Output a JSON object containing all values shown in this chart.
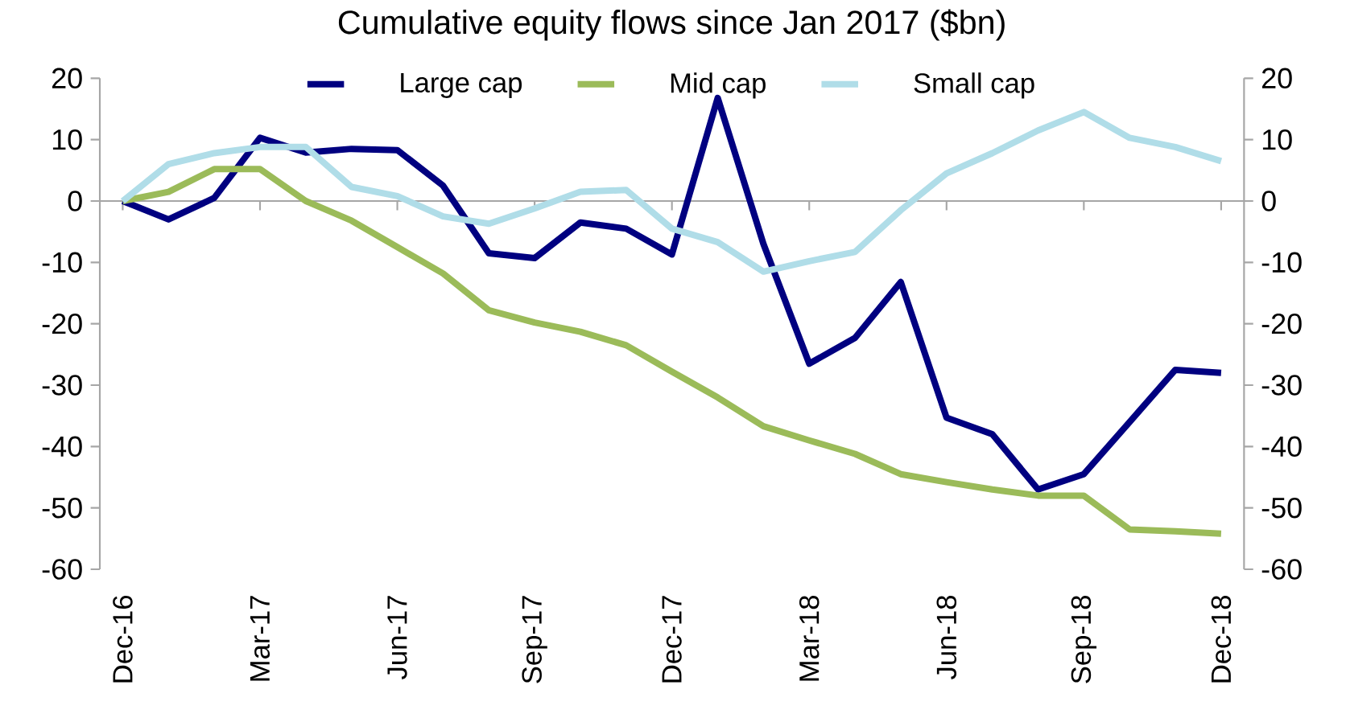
{
  "chart_data": {
    "type": "line",
    "title": "Cumulative  equity flows since Jan 2017 ($bn)",
    "x": [
      "2016-12",
      "2017-01",
      "2017-02",
      "2017-03",
      "2017-04",
      "2017-05",
      "2017-06",
      "2017-07",
      "2017-08",
      "2017-09",
      "2017-10",
      "2017-11",
      "2017-12",
      "2018-01",
      "2018-02",
      "2018-03",
      "2018-04",
      "2018-05",
      "2018-06",
      "2018-07",
      "2018-08",
      "2018-09",
      "2018-10",
      "2018-11",
      "2018-12"
    ],
    "series": [
      {
        "name": "Large cap",
        "color": "#000080",
        "values": [
          0,
          -3,
          0.5,
          10.3,
          7.9,
          8.5,
          8.3,
          2.5,
          -8.5,
          -9.3,
          -3.5,
          -4.5,
          -8.7,
          16.8,
          -7,
          -26.5,
          -22.3,
          -13.2,
          -35.3,
          -38,
          -47,
          -44.5,
          -36,
          -27.5,
          -28
        ]
      },
      {
        "name": "Mid cap",
        "color": "#9bbb59",
        "values": [
          0,
          1.5,
          5.2,
          5.2,
          0,
          -3.2,
          -7.5,
          -11.8,
          -17.8,
          -19.8,
          -21.3,
          -23.5,
          -27.8,
          -32,
          -36.7,
          -39,
          -41.2,
          -44.5,
          -45.8,
          -47,
          -48,
          -48,
          -53.5,
          -53.8,
          -54.2
        ]
      },
      {
        "name": "Small cap",
        "color": "#b0dde8",
        "values": [
          0,
          6,
          7.8,
          8.8,
          8.8,
          2.3,
          0.8,
          -2.5,
          -3.7,
          -1.2,
          1.5,
          1.8,
          -4.5,
          -6.7,
          -11.5,
          -9.8,
          -8.3,
          -1.5,
          4.5,
          7.8,
          11.5,
          14.5,
          10.3,
          8.8,
          6.5
        ]
      }
    ],
    "xlim": [
      "2016-12",
      "2018-12"
    ],
    "xticks": [
      {
        "value": "2016-12",
        "label": "Dec-16"
      },
      {
        "value": "2017-03",
        "label": "Mar-17"
      },
      {
        "value": "2017-06",
        "label": "Jun-17"
      },
      {
        "value": "2017-09",
        "label": "Sep-17"
      },
      {
        "value": "2017-12",
        "label": "Dec-17"
      },
      {
        "value": "2018-03",
        "label": "Mar-18"
      },
      {
        "value": "2018-06",
        "label": "Jun-18"
      },
      {
        "value": "2018-09",
        "label": "Sep-18"
      },
      {
        "value": "2018-12",
        "label": "Dec-18"
      }
    ],
    "ylim": [
      -60,
      20
    ],
    "yticks": [
      -60,
      -50,
      -40,
      -30,
      -20,
      -10,
      0,
      10,
      20
    ],
    "y2lim": [
      -60,
      20
    ],
    "y2ticks": [
      -60,
      -50,
      -40,
      -30,
      -20,
      -10,
      0,
      10,
      20
    ],
    "ref_lines": [
      {
        "axis": "y",
        "value": 0,
        "color": "#a6a6a6"
      }
    ],
    "legend": "top",
    "marker": "none",
    "line_style": "solid",
    "grid": false
  }
}
